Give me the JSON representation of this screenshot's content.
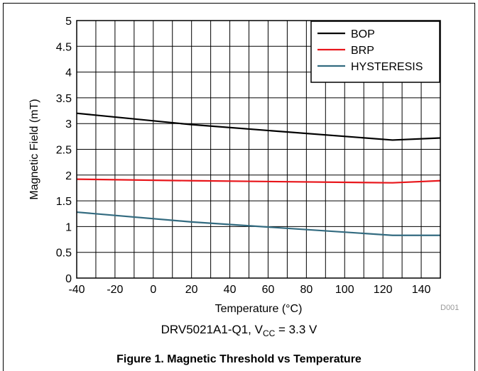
{
  "chart_data": {
    "type": "line",
    "xlabel": "Temperature (°C)",
    "ylabel": "Magnetic Field (mT)",
    "xlim": [
      -40,
      150
    ],
    "ylim": [
      0,
      5
    ],
    "xticks": [
      -40,
      -20,
      0,
      20,
      40,
      60,
      80,
      100,
      120,
      140
    ],
    "yticks": [
      0,
      0.5,
      1,
      1.5,
      2,
      2.5,
      3,
      3.5,
      4,
      4.5,
      5
    ],
    "grid": true,
    "legend_position": "top-right",
    "series": [
      {
        "name": "BOP",
        "color": "#000000",
        "x": [
          -40,
          20,
          125,
          150
        ],
        "y": [
          3.2,
          2.98,
          2.68,
          2.72
        ]
      },
      {
        "name": "BRP",
        "color": "#e8161b",
        "x": [
          -40,
          20,
          125,
          150
        ],
        "y": [
          1.92,
          1.89,
          1.85,
          1.89
        ]
      },
      {
        "name": "HYSTERESIS",
        "color": "#336b80",
        "x": [
          -40,
          20,
          125,
          150
        ],
        "y": [
          1.28,
          1.09,
          0.83,
          0.83
        ]
      }
    ]
  },
  "device_label": "DRV5021A1-Q1, V",
  "vcc_subscript": "CC",
  "vcc_value": " = 3.3 V",
  "figure_id": "D001",
  "figure_title": "Figure 1. Magnetic Threshold vs Temperature"
}
